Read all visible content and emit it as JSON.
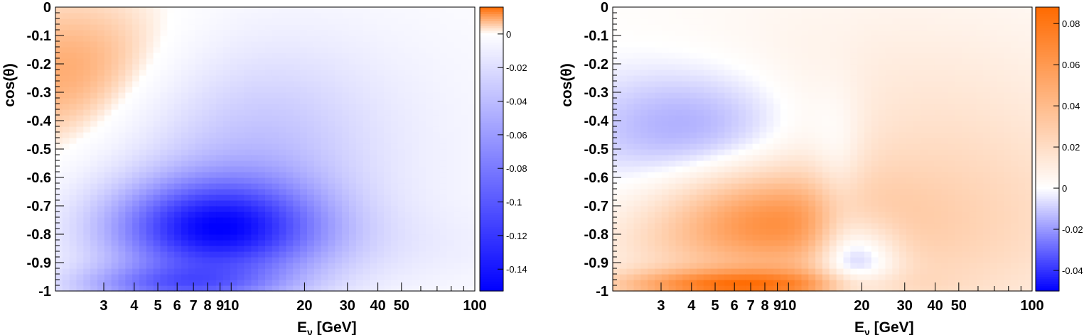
{
  "chart_data": [
    {
      "type": "heatmap",
      "xlabel": "E",
      "xlabel_sub": "ν",
      "xlabel_unit": " [GeV]",
      "ylabel": "cos(θ)",
      "x_scale": "log",
      "xlim": [
        1.9,
        100
      ],
      "ylim": [
        -1,
        0
      ],
      "x_tick_labels": [
        "3",
        "4",
        "5",
        "6",
        "7",
        "8",
        "9",
        "10",
        "20",
        "30",
        "40",
        "50",
        "100"
      ],
      "x_tick_values": [
        3,
        4,
        5,
        6,
        7,
        8,
        9,
        10,
        20,
        30,
        40,
        50,
        100
      ],
      "x_minor_ticks": [
        60,
        70,
        80,
        90
      ],
      "y_tick_labels": [
        "0",
        "-0.1",
        "-0.2",
        "-0.3",
        "-0.4",
        "-0.5",
        "-0.6",
        "-0.7",
        "-0.8",
        "-0.9",
        "-1"
      ],
      "y_tick_values": [
        0,
        -0.1,
        -0.2,
        -0.3,
        -0.4,
        -0.5,
        -0.6,
        -0.7,
        -0.8,
        -0.9,
        -1
      ],
      "colorbar": {
        "range": [
          -0.153,
          0.016
        ],
        "tick_labels": [
          "0",
          "-0.02",
          "-0.04",
          "-0.06",
          "-0.08",
          "-0.1",
          "-0.12",
          "-0.14"
        ],
        "tick_values": [
          0,
          -0.02,
          -0.04,
          -0.06,
          -0.08,
          -0.1,
          -0.12,
          -0.14
        ],
        "negative_color": "#0000ff",
        "zero_color": "#ffffff",
        "positive_color": "#ff6a00"
      },
      "features": [
        {
          "e": 8.6,
          "c": -0.78,
          "v": -0.13,
          "se": 0.3,
          "sc": 0.12
        },
        {
          "e": 6.0,
          "c": -0.98,
          "v": -0.07,
          "se": 0.3,
          "sc": 0.05
        },
        {
          "e": 12.0,
          "c": -0.5,
          "v": -0.035,
          "se": 0.35,
          "sc": 0.25
        },
        {
          "e": 3.0,
          "c": -0.25,
          "v": 0.012,
          "se": 0.4,
          "sc": 0.2
        },
        {
          "e": 40.0,
          "c": -0.45,
          "v": -0.006,
          "se": 0.6,
          "sc": 0.4
        },
        {
          "e": 30.0,
          "c": -0.85,
          "v": -0.008,
          "se": 0.6,
          "sc": 0.1
        }
      ]
    },
    {
      "type": "heatmap",
      "xlabel": "E",
      "xlabel_sub": "ν",
      "xlabel_unit": " [GeV]",
      "ylabel": "cos(θ)",
      "x_scale": "log",
      "xlim": [
        1.9,
        100
      ],
      "ylim": [
        -1,
        0
      ],
      "x_tick_labels": [
        "3",
        "4",
        "5",
        "6",
        "7",
        "8",
        "9",
        "10",
        "20",
        "30",
        "40",
        "50",
        "100"
      ],
      "x_tick_values": [
        3,
        4,
        5,
        6,
        7,
        8,
        9,
        10,
        20,
        30,
        40,
        50,
        100
      ],
      "x_minor_ticks": [
        60,
        70,
        80,
        90
      ],
      "y_tick_labels": [
        "0",
        "-0.1",
        "-0.2",
        "-0.3",
        "-0.4",
        "-0.5",
        "-0.6",
        "-0.7",
        "-0.8",
        "-0.9",
        "-1"
      ],
      "y_tick_values": [
        0,
        -0.1,
        -0.2,
        -0.3,
        -0.4,
        -0.5,
        -0.6,
        -0.7,
        -0.8,
        -0.9,
        -1
      ],
      "colorbar": {
        "range": [
          -0.05,
          0.088
        ],
        "tick_labels": [
          "0.08",
          "0.06",
          "0.04",
          "0.02",
          "0",
          "-0.02",
          "-0.04"
        ],
        "tick_values": [
          0.08,
          0.06,
          0.04,
          0.02,
          0,
          -0.02,
          -0.04
        ],
        "negative_color": "#0000ff",
        "zero_color": "#ffffff",
        "positive_color": "#ff6a00"
      },
      "features": [
        {
          "e": 8.2,
          "c": -0.76,
          "v": 0.052,
          "se": 0.3,
          "sc": 0.12
        },
        {
          "e": 6.0,
          "c": -0.98,
          "v": 0.07,
          "se": 0.35,
          "sc": 0.04
        },
        {
          "e": 4.2,
          "c": -0.42,
          "v": -0.022,
          "se": 0.35,
          "sc": 0.15
        },
        {
          "e": 20.0,
          "c": -0.88,
          "v": -0.035,
          "se": 0.12,
          "sc": 0.12
        },
        {
          "e": 16.0,
          "c": -0.7,
          "v": -0.015,
          "se": 0.08,
          "sc": 0.25
        },
        {
          "e": 40.0,
          "c": -0.8,
          "v": 0.022,
          "se": 0.55,
          "sc": 0.25
        },
        {
          "e": 30.0,
          "c": -0.35,
          "v": 0.012,
          "se": 0.7,
          "sc": 0.3
        },
        {
          "e": 3.0,
          "c": -0.85,
          "v": 0.008,
          "se": 0.25,
          "sc": 0.08
        }
      ]
    }
  ]
}
